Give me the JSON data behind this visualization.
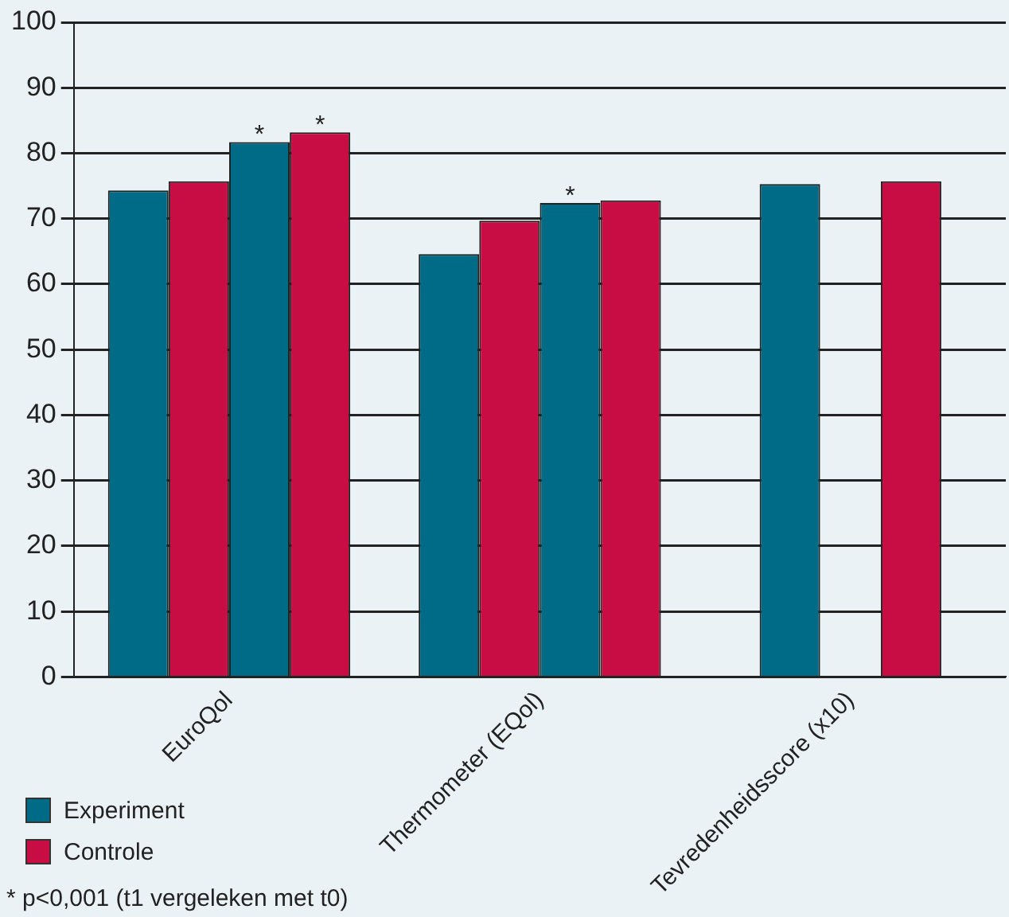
{
  "chart_data": {
    "type": "bar",
    "categories": [
      "EuroQol",
      "Thermometer (EQol)",
      "Tevredenheidsscore (x10)"
    ],
    "series": [
      {
        "name": "Experiment",
        "color": "#006b86",
        "values": [
          74.3,
          64.6,
          75.3
        ]
      },
      {
        "name": "Controle",
        "color": "#c80c44",
        "values": [
          75.7,
          69.7,
          75.7
        ]
      },
      {
        "color": "#006b86",
        "values": [
          81.7,
          72.4,
          null
        ],
        "value_labels": [
          "*",
          "*",
          null
        ]
      },
      {
        "color": "#c80c44",
        "values": [
          83.2,
          72.8,
          null
        ],
        "value_labels": [
          "*",
          null,
          null
        ]
      }
    ],
    "ylim": [
      0,
      100
    ],
    "yticks": [
      0,
      10,
      20,
      30,
      40,
      50,
      60,
      70,
      80,
      90,
      100
    ],
    "grid": "y",
    "legend": "bottom left",
    "annotations": [
      "* p<0,001 (t1 vergeleken met t0)"
    ]
  }
}
